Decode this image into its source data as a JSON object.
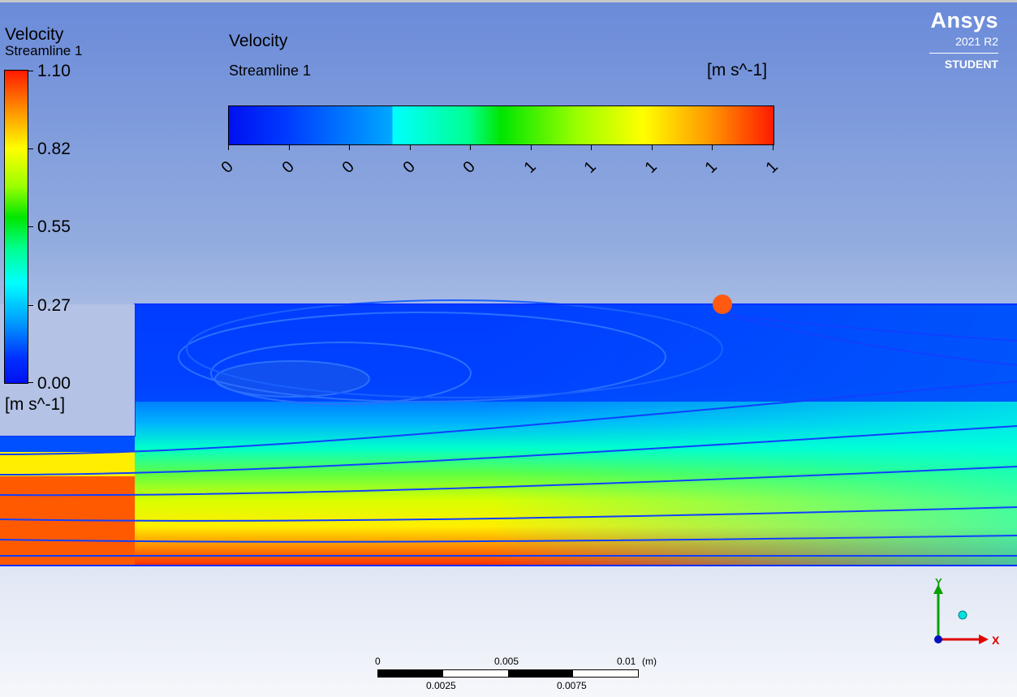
{
  "left_legend": {
    "title": "Velocity",
    "subtitle": "Streamline 1",
    "max": "1.10",
    "v2": "0.82",
    "v3": "0.55",
    "v4": "0.27",
    "min": "0.00",
    "unit": "[m s^-1]"
  },
  "top_legend": {
    "title": "Velocity",
    "subtitle": "Streamline 1",
    "unit": "[m s^-1]",
    "ticks": [
      "0",
      "0",
      "0",
      "0",
      "0",
      "1",
      "1",
      "1",
      "1",
      "1"
    ]
  },
  "logo": {
    "name": "Ansys",
    "version": "2021 R2",
    "edition": "STUDENT"
  },
  "axes": {
    "y": "Y",
    "x": "X"
  },
  "scale_bar": {
    "top": [
      "0",
      "0.005",
      "0.01"
    ],
    "unit": "(m)",
    "bottom": [
      "0.0025",
      "0.0075"
    ]
  },
  "colors": {
    "marker": "#ff5a10",
    "triad_y": "#0aa000",
    "triad_x": "#e00000"
  }
}
